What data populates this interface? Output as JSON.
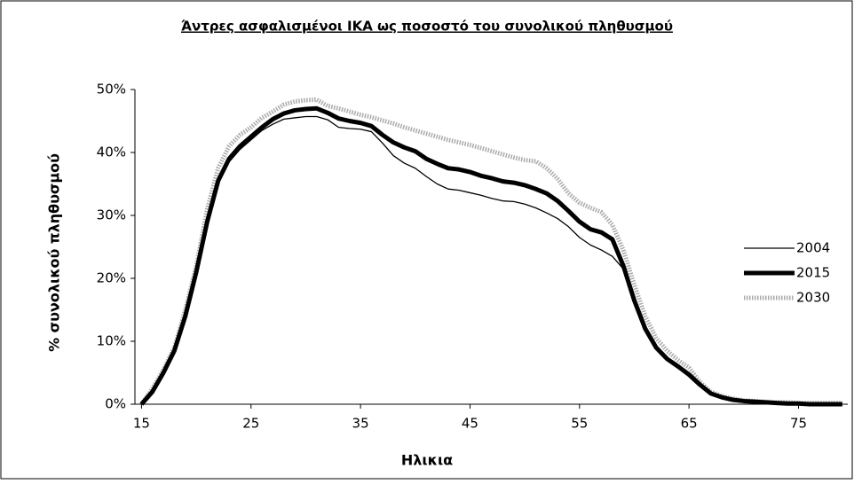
{
  "chart_data": {
    "type": "line",
    "title": "Άντρες ασφαλισμένοι ΙΚΑ ως ποσοστό του συνολικού πληθυσμού",
    "xlabel": "Ηλικια",
    "ylabel": "% συνολικού πληθυσμού",
    "x": [
      15,
      16,
      17,
      18,
      19,
      20,
      21,
      22,
      23,
      24,
      25,
      26,
      27,
      28,
      29,
      30,
      31,
      32,
      33,
      34,
      35,
      36,
      37,
      38,
      39,
      40,
      41,
      42,
      43,
      44,
      45,
      46,
      47,
      48,
      49,
      50,
      51,
      52,
      53,
      54,
      55,
      56,
      57,
      58,
      59,
      60,
      61,
      62,
      63,
      64,
      65,
      66,
      67,
      68,
      69,
      70,
      71,
      72,
      73,
      74,
      75,
      76,
      77,
      78,
      79
    ],
    "series": [
      {
        "name": "2004",
        "color": "#000000",
        "line_width": 1.3,
        "dashed": false,
        "values": [
          0,
          2,
          5,
          8.5,
          14,
          21,
          29,
          35,
          38.5,
          40.5,
          42,
          43.5,
          44.5,
          45.3,
          45.5,
          45.7,
          45.7,
          45.2,
          44,
          43.8,
          43.7,
          43.3,
          41.5,
          39.5,
          38.3,
          37.5,
          36.2,
          35,
          34.2,
          34,
          33.6,
          33.2,
          32.7,
          32.3,
          32.2,
          31.8,
          31.2,
          30.4,
          29.5,
          28.2,
          26.5,
          25.3,
          24.5,
          23.5,
          21.5,
          16.5,
          12,
          9,
          7,
          5.8,
          4.5,
          3,
          1.5,
          1,
          0.6,
          0.4,
          0.3,
          0.2,
          0.1,
          0.1,
          0.1,
          0,
          0,
          0,
          0
        ]
      },
      {
        "name": "2015",
        "color": "#000000",
        "line_width": 5,
        "dashed": false,
        "values": [
          0,
          2,
          5,
          8.5,
          14,
          21,
          29,
          35.5,
          39,
          41,
          42.5,
          44,
          45.3,
          46.2,
          46.7,
          46.9,
          47,
          46.3,
          45.4,
          45,
          44.7,
          44.2,
          42.8,
          41.6,
          40.8,
          40.2,
          39,
          38.2,
          37.5,
          37.3,
          36.9,
          36.3,
          35.9,
          35.4,
          35.2,
          34.8,
          34.2,
          33.5,
          32.3,
          30.7,
          29,
          27.8,
          27.3,
          26.2,
          22,
          16.5,
          12,
          9,
          7.2,
          6,
          4.7,
          3.1,
          1.7,
          1.1,
          0.7,
          0.5,
          0.4,
          0.3,
          0.2,
          0.1,
          0.1,
          0,
          0,
          0,
          0
        ]
      },
      {
        "name": "2030",
        "color": "#aaaaaa",
        "line_width": 5,
        "dashed": true,
        "values": [
          0,
          2.5,
          5.5,
          9,
          15,
          22,
          31,
          37.5,
          41,
          42.8,
          44,
          45.5,
          46.5,
          47.6,
          48.1,
          48.3,
          48.4,
          47.4,
          47,
          46.5,
          46,
          45.6,
          45.1,
          44.6,
          44,
          43.5,
          43,
          42.5,
          42,
          41.6,
          41.2,
          40.7,
          40.2,
          39.7,
          39.2,
          38.8,
          38.6,
          37.5,
          35.8,
          33.5,
          32,
          31.2,
          30.5,
          28.5,
          24.5,
          19,
          14,
          10.5,
          8.5,
          7,
          5.8,
          3.5,
          2,
          1.3,
          0.9,
          0.6,
          0.5,
          0.4,
          0.3,
          0.3,
          0.2,
          0.2,
          0.2,
          0.2,
          0.2
        ]
      }
    ],
    "xlim": [
      14.4,
      79.5
    ],
    "xticks": [
      15,
      25,
      35,
      45,
      55,
      65,
      75
    ],
    "ylim": [
      0,
      50
    ],
    "yticks": [
      {
        "value": 0,
        "label": "0%"
      },
      {
        "value": 10,
        "label": "10%"
      },
      {
        "value": 20,
        "label": "20%"
      },
      {
        "value": 30,
        "label": "30%"
      },
      {
        "value": 40,
        "label": "40%"
      },
      {
        "value": 50,
        "label": "50%"
      }
    ],
    "grid": false,
    "legend": "right"
  }
}
